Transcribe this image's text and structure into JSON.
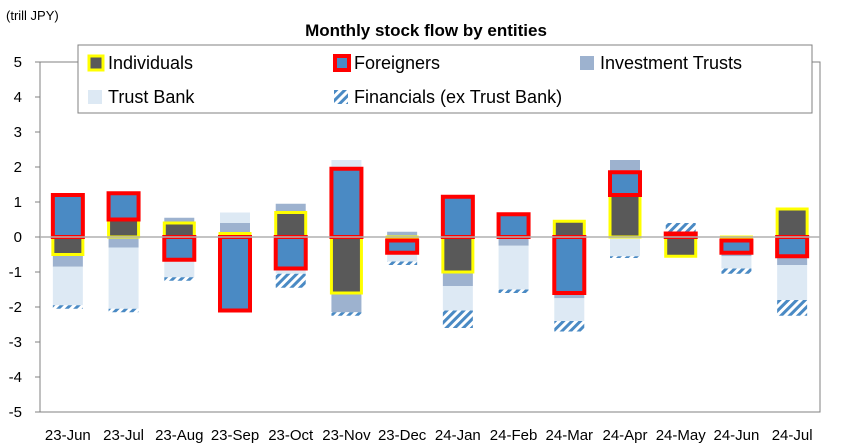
{
  "chart_data": {
    "type": "bar",
    "title": "Monthly stock flow by entities",
    "ylabel": "(trill JPY)",
    "xlabel": "",
    "ylim": [
      -5,
      5
    ],
    "yticks": [
      5,
      4,
      3,
      2,
      1,
      0,
      -1,
      -2,
      -3,
      -4,
      -5
    ],
    "grid": false,
    "legend_position": "top",
    "categories": [
      "23-Jun",
      "23-Jul",
      "23-Aug",
      "23-Sep",
      "23-Oct",
      "23-Nov",
      "23-Dec",
      "24-Jan",
      "24-Feb",
      "24-Mar",
      "24-Apr",
      "24-May",
      "24-Jun",
      "24-Jul"
    ],
    "stacked": true,
    "series": [
      {
        "name": "Individuals",
        "color": "#595959",
        "outline": "#ffff00",
        "values": [
          -0.5,
          0.5,
          0.4,
          0.1,
          0.7,
          -1.6,
          -0.1,
          -1.0,
          0.0,
          0.45,
          1.2,
          -0.55,
          -0.1,
          0.8
        ]
      },
      {
        "name": "Foreigners",
        "color": "#4a8ac4",
        "outline": "#ff0000",
        "values": [
          1.2,
          0.75,
          -0.65,
          -2.1,
          -0.9,
          1.95,
          -0.35,
          1.15,
          0.65,
          -1.6,
          0.65,
          0.1,
          -0.35,
          -0.55
        ]
      },
      {
        "name": "Investment Trusts",
        "color": "#9db2cf",
        "outline": "",
        "values": [
          -0.35,
          -0.3,
          0.15,
          0.3,
          0.25,
          -0.55,
          0.15,
          -0.4,
          -0.25,
          -0.15,
          0.35,
          0.0,
          -0.1,
          -0.25
        ]
      },
      {
        "name": "Trust Bank",
        "color": "#dde9f4",
        "outline": "",
        "values": [
          -1.1,
          -1.75,
          -0.5,
          0.3,
          -0.15,
          0.25,
          -0.25,
          -0.7,
          -1.25,
          -0.65,
          -0.55,
          0.0,
          -0.35,
          -1.0
        ]
      },
      {
        "name": "Financials (ex Trust Bank)",
        "color": "#4a8ac4",
        "outline": "",
        "values": [
          -0.1,
          -0.1,
          -0.1,
          -0.05,
          -0.4,
          -0.1,
          -0.1,
          -0.5,
          -0.1,
          -0.3,
          -0.05,
          0.3,
          -0.15,
          -0.45
        ]
      }
    ]
  }
}
